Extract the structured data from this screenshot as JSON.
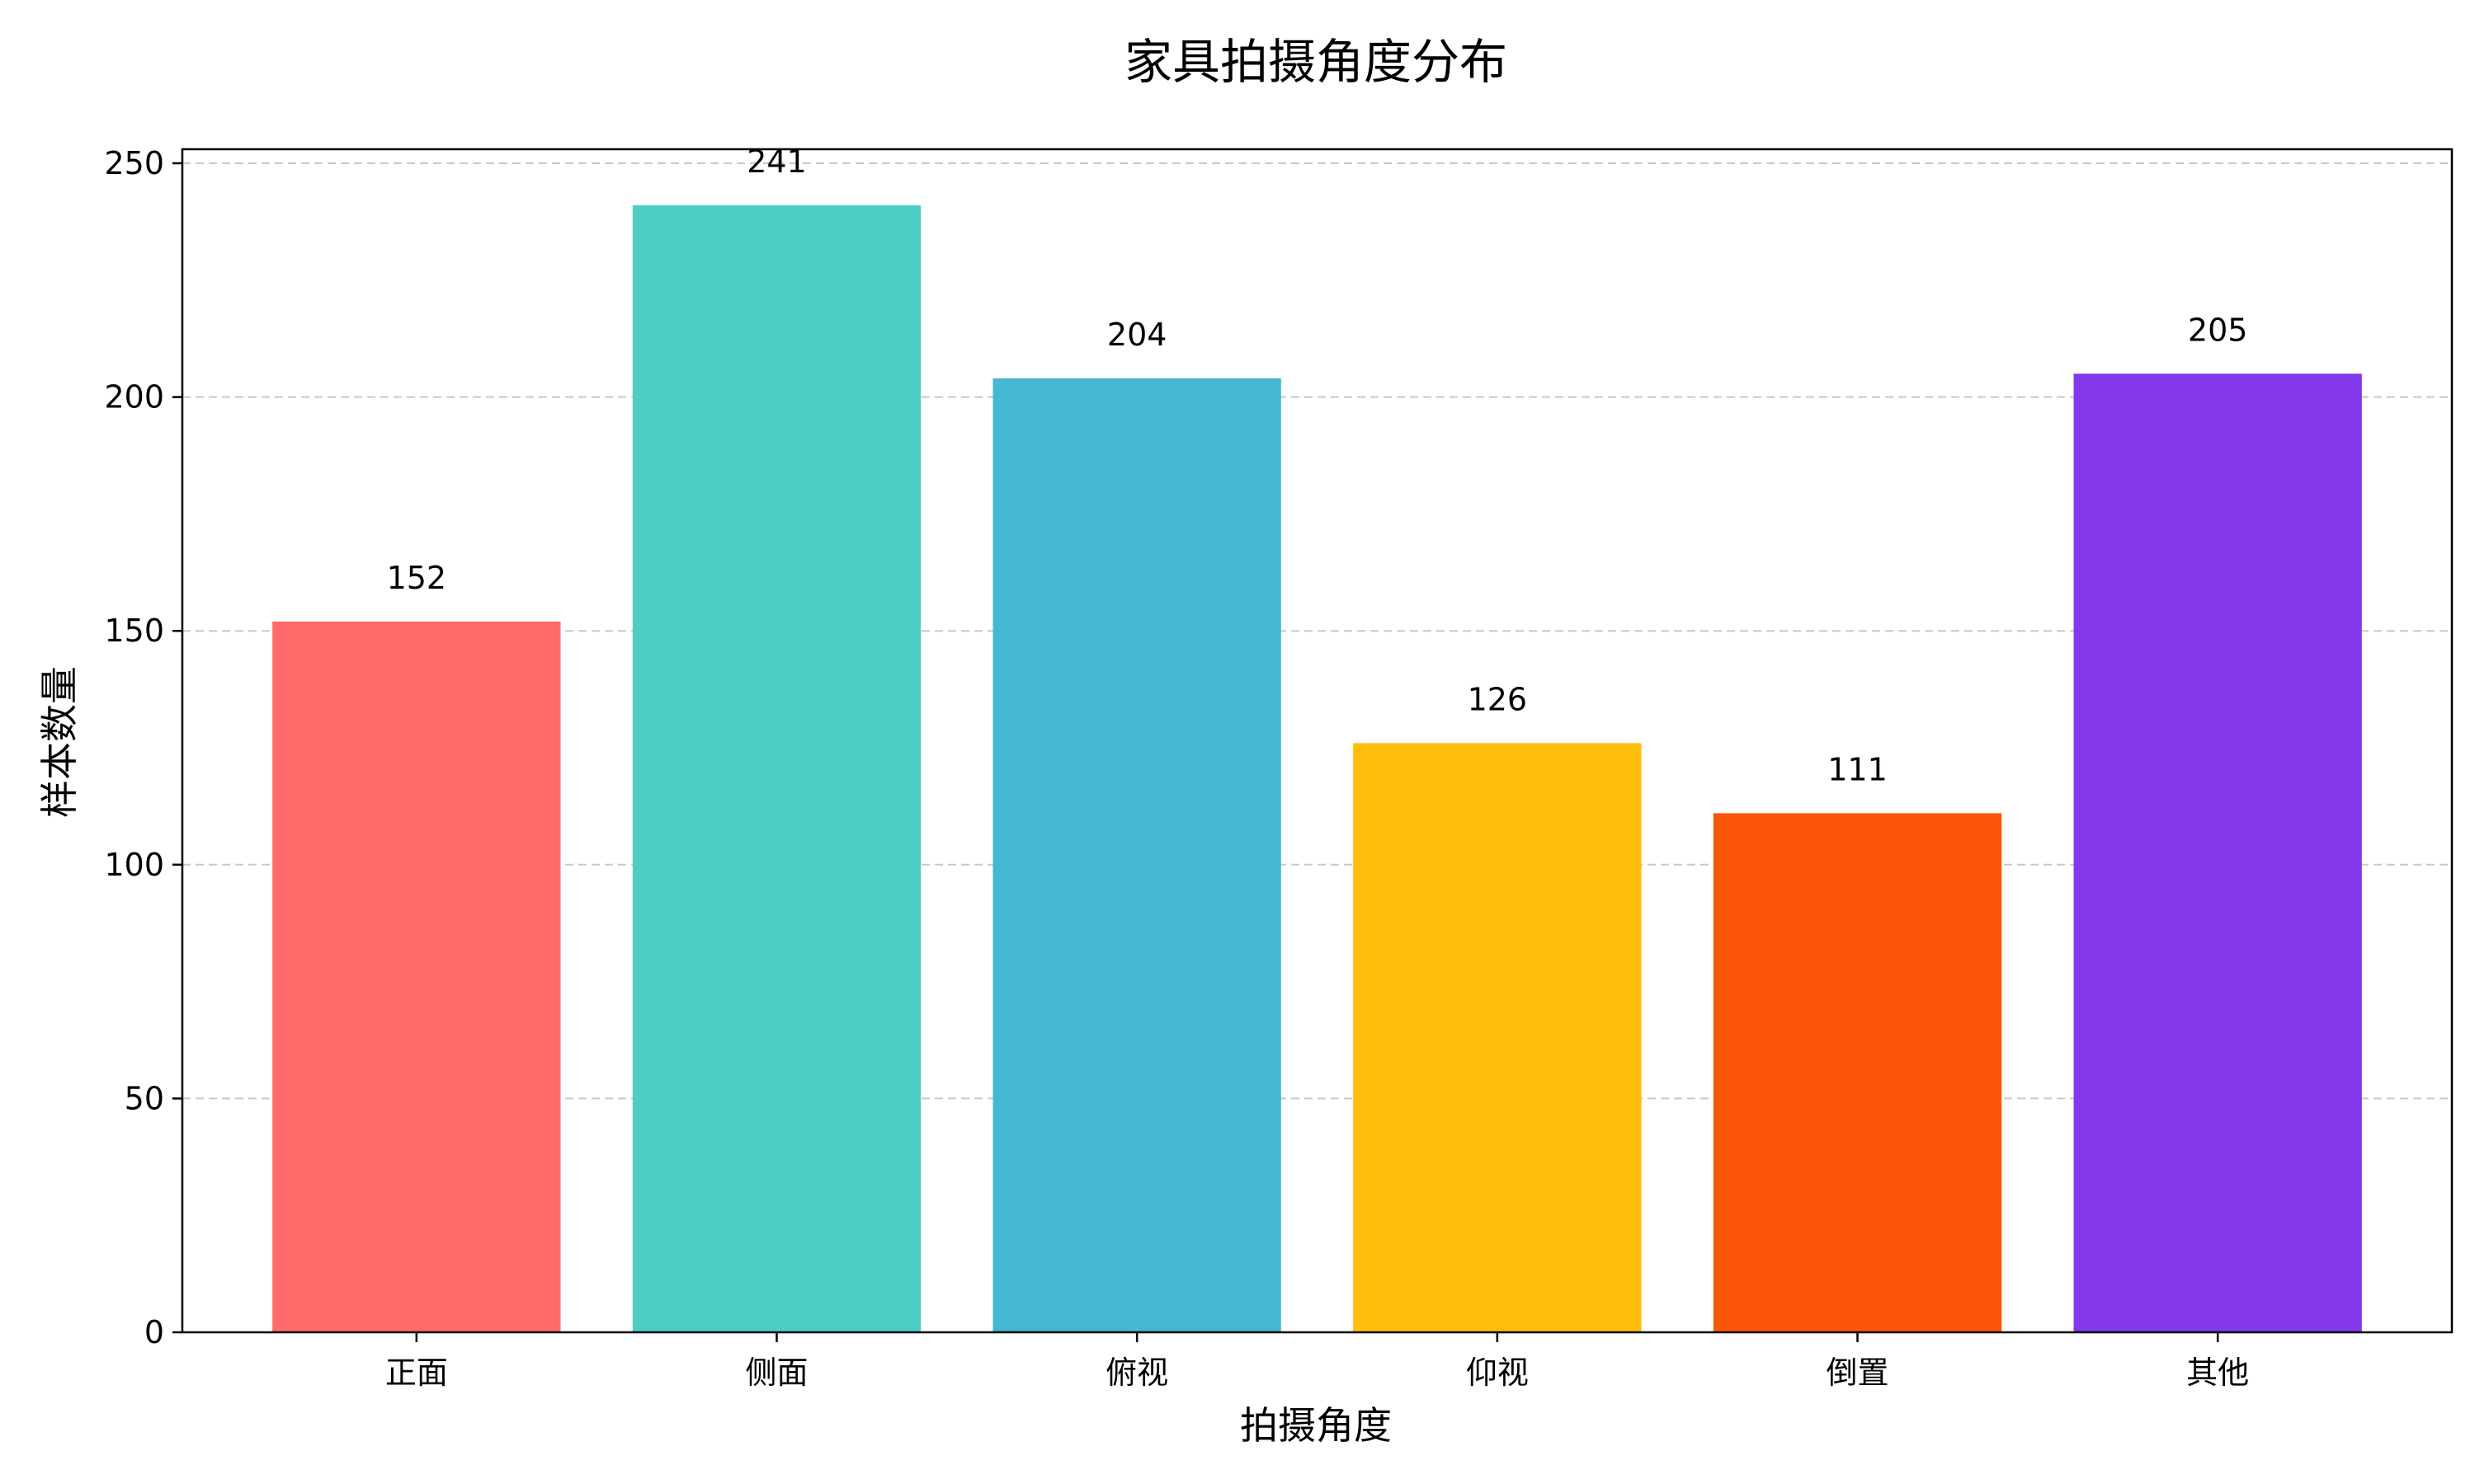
{
  "chart_data": {
    "type": "bar",
    "title": "家具拍摄角度分布",
    "xlabel": "拍摄角度",
    "ylabel": "样本数量",
    "categories": [
      "正面",
      "侧面",
      "俯视",
      "仰视",
      "倒置",
      "其他"
    ],
    "values": [
      152,
      241,
      204,
      126,
      111,
      205
    ],
    "colors": [
      "#FF6B6B",
      "#4ECDC4",
      "#45B7D1",
      "#FFBE0B",
      "#FB5607",
      "#8338EC"
    ],
    "ylim": [
      0,
      253
    ],
    "yticks": [
      0,
      50,
      100,
      150,
      200,
      250
    ],
    "grid": "y-dashed",
    "legend": "none"
  }
}
